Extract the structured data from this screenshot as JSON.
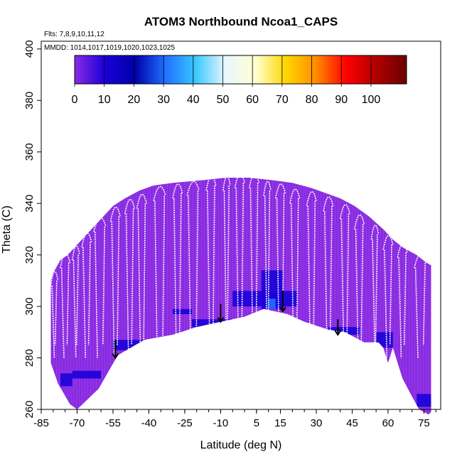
{
  "chart_data": {
    "type": "heatmap",
    "title": "ATOM3 Northbound Ncoa1_CAPS",
    "subtitle_flights": "Flts: 7,8,9,10,11,12",
    "subtitle_dates": "MMDD: 1014,1017,1019,1020,1023,1025",
    "xlabel": "Latitude (deg N)",
    "ylabel": "Theta (C)",
    "xlim": [
      -85,
      82
    ],
    "ylim": [
      260,
      403
    ],
    "x_ticks": [
      -85,
      -70,
      -55,
      -40,
      -25,
      -10,
      5,
      15,
      30,
      45,
      60,
      75
    ],
    "y_ticks": [
      260,
      280,
      300,
      320,
      340,
      360,
      380,
      400
    ],
    "colorbar": {
      "range": [
        0,
        112
      ],
      "ticks": [
        0,
        10,
        20,
        30,
        40,
        50,
        60,
        70,
        80,
        90,
        100
      ],
      "colors": [
        "#8a2be2",
        "#1a00d8",
        "#0000a8",
        "#1f6fff",
        "#38c8ff",
        "#e8f6ff",
        "#ffffd0",
        "#ffd700",
        "#ff8c00",
        "#ff0000",
        "#b00000",
        "#6a0000"
      ]
    },
    "upper_boundary": [
      [
        -81,
        310
      ],
      [
        -80,
        313
      ],
      [
        -77,
        318
      ],
      [
        -74,
        320
      ],
      [
        -70,
        324
      ],
      [
        -67,
        327
      ],
      [
        -63,
        331
      ],
      [
        -58,
        336
      ],
      [
        -55,
        339
      ],
      [
        -50,
        342
      ],
      [
        -44,
        345
      ],
      [
        -38,
        347
      ],
      [
        -30,
        348
      ],
      [
        -18,
        349
      ],
      [
        -8,
        350
      ],
      [
        2,
        350
      ],
      [
        12,
        349
      ],
      [
        20,
        348
      ],
      [
        28,
        346
      ],
      [
        34,
        344
      ],
      [
        40,
        342
      ],
      [
        46,
        339
      ],
      [
        52,
        335
      ],
      [
        58,
        330
      ],
      [
        62,
        326
      ],
      [
        66,
        323
      ],
      [
        72,
        320
      ],
      [
        76,
        317
      ],
      [
        78,
        316
      ]
    ],
    "lower_boundary": [
      [
        -81,
        278
      ],
      [
        -78,
        270
      ],
      [
        -73,
        262
      ],
      [
        -70,
        260
      ],
      [
        -61,
        268
      ],
      [
        -53,
        281
      ],
      [
        -42,
        287
      ],
      [
        -30,
        289
      ],
      [
        -20,
        292
      ],
      [
        -10,
        294
      ],
      [
        0,
        296
      ],
      [
        8,
        299
      ],
      [
        18,
        297
      ],
      [
        25,
        294
      ],
      [
        35,
        291
      ],
      [
        42,
        290
      ],
      [
        50,
        286
      ],
      [
        56,
        286
      ],
      [
        58,
        284
      ],
      [
        60,
        278
      ],
      [
        62,
        284
      ],
      [
        66,
        272
      ],
      [
        70,
        265
      ],
      [
        73,
        260
      ],
      [
        77,
        258
      ],
      [
        78,
        259
      ]
    ],
    "low_value_fill": "#8a2be2",
    "enhanced_regions": [
      {
        "lat": [
          -77,
          -72
        ],
        "theta": [
          269,
          274
        ],
        "value": 12
      },
      {
        "lat": [
          -72,
          -60
        ],
        "theta": [
          272,
          275
        ],
        "value": 10
      },
      {
        "lat": [
          -55,
          -40
        ],
        "theta": [
          283,
          287
        ],
        "value": 12
      },
      {
        "lat": [
          -30,
          -22
        ],
        "theta": [
          297,
          299
        ],
        "value": 14
      },
      {
        "lat": [
          -22,
          -5
        ],
        "theta": [
          292,
          295
        ],
        "value": 12
      },
      {
        "lat": [
          -5,
          22
        ],
        "theta": [
          300,
          306
        ],
        "value": 12
      },
      {
        "lat": [
          7,
          16
        ],
        "theta": [
          299,
          314
        ],
        "value": 18
      },
      {
        "lat": [
          10,
          13
        ],
        "theta": [
          299,
          303
        ],
        "value": 30
      },
      {
        "lat": [
          35,
          48
        ],
        "theta": [
          289,
          292
        ],
        "value": 14
      },
      {
        "lat": [
          55,
          62
        ],
        "theta": [
          284,
          290
        ],
        "value": 15
      },
      {
        "lat": [
          72,
          78
        ],
        "theta": [
          261,
          266
        ],
        "value": 12
      }
    ],
    "tropopause_markers": [
      {
        "lat": -54,
        "theta_top": 287,
        "theta_bottom": 280
      },
      {
        "lat": -10,
        "theta_top": 301,
        "theta_bottom": 294
      },
      {
        "lat": 16,
        "theta_top": 306,
        "theta_bottom": 298
      },
      {
        "lat": 39,
        "theta_top": 295,
        "theta_bottom": 289
      }
    ],
    "flight_profiles_color": "#ffffff",
    "grid": false
  }
}
